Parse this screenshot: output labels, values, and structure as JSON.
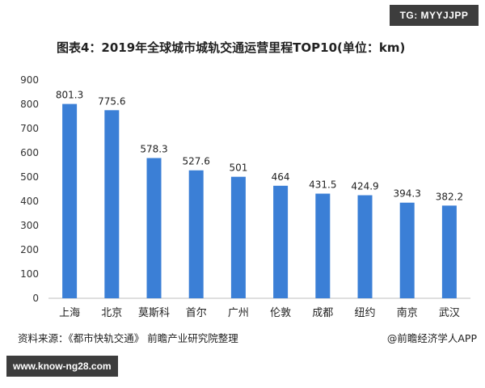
{
  "header": {
    "badge_text": "TG: MYYJJPP"
  },
  "footer": {
    "source_text": "资料来源：《都市快轨交通》 前瞻产业研究院整理",
    "brand_text": "@前瞻经济学人APP",
    "url_badge_text": "www.know-ng28.com"
  },
  "colors": {
    "bar": "#3b7fd6",
    "gridline": "#bfbfbf",
    "axis_text": "#333333"
  },
  "chart_data": {
    "type": "bar",
    "title": "图表4：2019年全球城市城轨交通运营里程TOP10(单位：km)",
    "xlabel": "",
    "ylabel": "",
    "categories": [
      "上海",
      "北京",
      "莫斯科",
      "首尔",
      "广州",
      "伦敦",
      "成都",
      "纽约",
      "南京",
      "武汉"
    ],
    "values": [
      801.3,
      775.6,
      578.3,
      527.6,
      501,
      464,
      431.5,
      424.9,
      394.3,
      382.2
    ],
    "value_labels": [
      "801.3",
      "775.6",
      "578.3",
      "527.6",
      "501",
      "464",
      "431.5",
      "424.9",
      "394.3",
      "382.2"
    ],
    "ylim": [
      0,
      900
    ],
    "yticks": [
      "0",
      "100",
      "200",
      "300",
      "400",
      "500",
      "600",
      "700",
      "800",
      "900"
    ],
    "grid": false,
    "legend": "none"
  }
}
